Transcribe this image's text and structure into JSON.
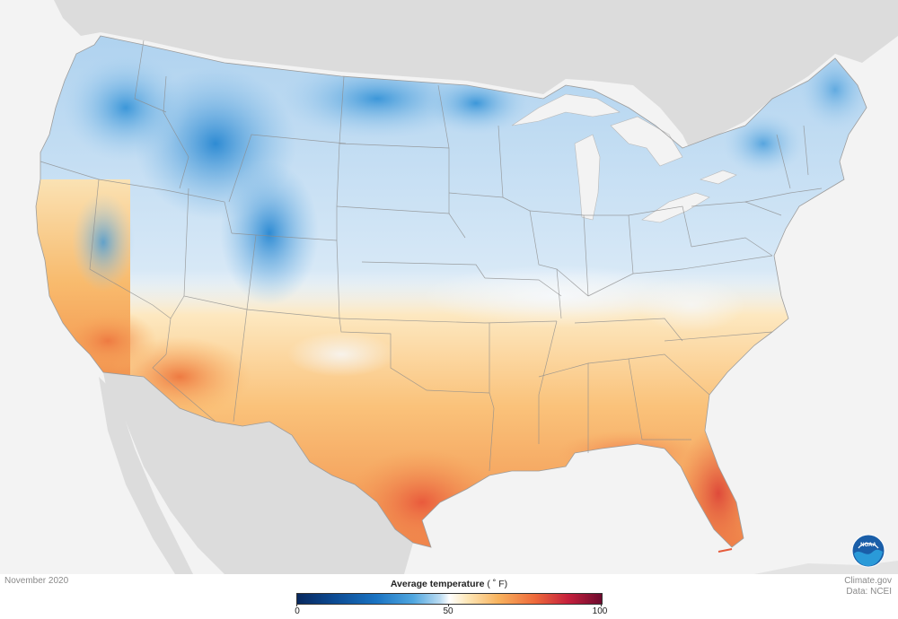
{
  "date_label": "November 2020",
  "legend": {
    "title": "Average temperature",
    "unit": "( ˚ F)",
    "ticks": [
      "0",
      "50",
      "100"
    ],
    "range": [
      0,
      100
    ]
  },
  "credits": {
    "line1": "Climate.gov",
    "line2": "Data: NCEI"
  },
  "logo": {
    "text": "NOAA"
  },
  "colors": {
    "cold": "#0c4a92",
    "mid": "#ffffff",
    "warm": "#ee6a3b",
    "background": "#f3f3f3",
    "land_outside": "#dcdcdc"
  }
}
